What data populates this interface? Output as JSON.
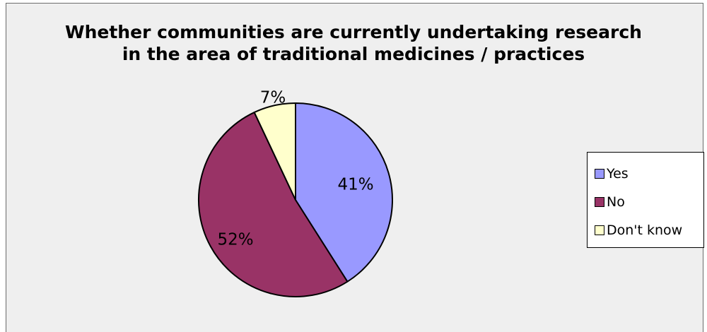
{
  "chart_data": {
    "type": "pie",
    "title": "Whether communities are currently undertaking research in the area of traditional medicines / practices",
    "title_lines": [
      "Whether communities are currently undertaking research",
      "in the area of traditional medicines / practices"
    ],
    "categories": [
      "Yes",
      "No",
      "Don't know"
    ],
    "values": [
      41,
      52,
      7
    ],
    "labels": [
      "41%",
      "52%",
      "7%"
    ],
    "colors": [
      "#9999ff",
      "#993366",
      "#ffffcc"
    ],
    "legend_position": "right",
    "start_angle_deg": 0,
    "direction": "clockwise"
  }
}
